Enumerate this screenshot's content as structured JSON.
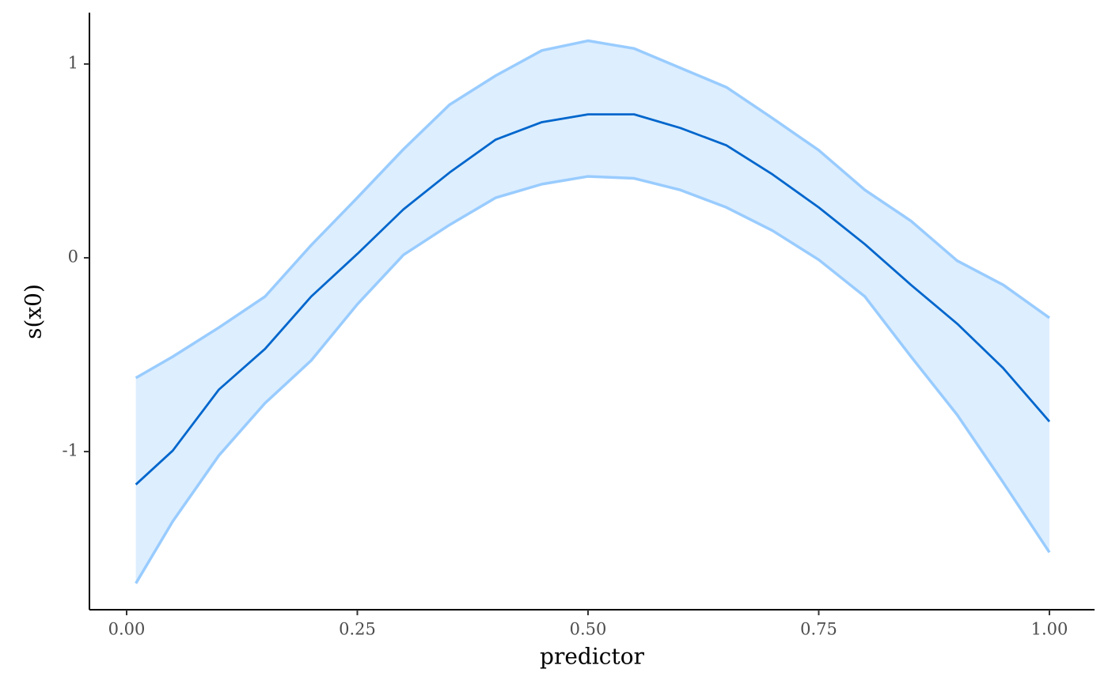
{
  "chart_data": {
    "type": "line",
    "xlabel": "predictor",
    "ylabel": "s(x0)",
    "x": [
      0.01,
      0.05,
      0.1,
      0.15,
      0.2,
      0.25,
      0.3,
      0.35,
      0.4,
      0.45,
      0.5,
      0.55,
      0.6,
      0.65,
      0.7,
      0.75,
      0.8,
      0.85,
      0.9,
      0.95,
      1.0
    ],
    "values": [
      -1.17,
      -0.995,
      -0.68,
      -0.47,
      -0.2,
      0.02,
      0.25,
      0.44,
      0.61,
      0.7,
      0.74,
      0.74,
      0.67,
      0.58,
      0.43,
      0.26,
      0.07,
      -0.14,
      -0.34,
      -0.57,
      -0.845
    ],
    "upper": [
      -0.62,
      -0.51,
      -0.36,
      -0.2,
      0.065,
      0.31,
      0.56,
      0.79,
      0.94,
      1.07,
      1.12,
      1.08,
      0.98,
      0.88,
      0.72,
      0.555,
      0.35,
      0.19,
      -0.015,
      -0.14,
      -0.31
    ],
    "lower": [
      -1.68,
      -1.36,
      -1.02,
      -0.75,
      -0.53,
      -0.24,
      0.015,
      0.17,
      0.31,
      0.38,
      0.42,
      0.41,
      0.35,
      0.26,
      0.14,
      -0.01,
      -0.2,
      -0.51,
      -0.81,
      -1.16,
      -1.52
    ],
    "color": "#0066cc",
    "ribbon_line_color": "#99ccff",
    "ribbon_fill": "#ddeeff",
    "xlim": [
      -0.0403,
      1.0489
    ],
    "ylim": [
      -1.816,
      1.265
    ],
    "xticks": [
      {
        "value": 0,
        "label": "0.00"
      },
      0.25,
      {
        "value": 0.5,
        "label": "0.50"
      },
      0.75,
      {
        "value": 1,
        "label": "1.00"
      }
    ],
    "yticks": [
      -1,
      0,
      1
    ],
    "grid": false
  }
}
